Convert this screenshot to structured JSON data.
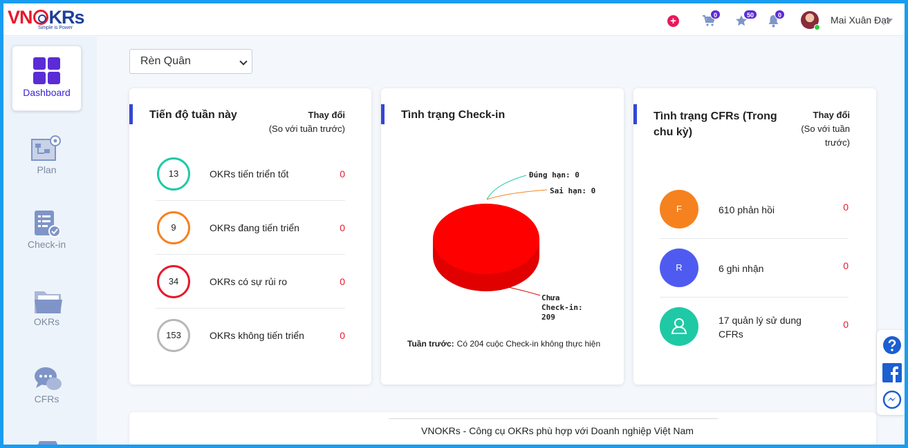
{
  "app": {
    "logo_brand": "VNOKRs",
    "logo_tagline": "Simple is Power"
  },
  "header": {
    "cart_count": "0",
    "star_count": "50",
    "bell_count": "0",
    "user_name": "Mai Xuân Đạt"
  },
  "sidebar": {
    "items": [
      {
        "label": "Dashboard",
        "icon": "dashboard-icon",
        "active": true
      },
      {
        "label": "Plan",
        "icon": "plan-icon",
        "active": false
      },
      {
        "label": "Check-in",
        "icon": "checkin-icon",
        "active": false
      },
      {
        "label": "OKRs",
        "icon": "okrs-folder-icon",
        "active": false
      },
      {
        "label": "CFRs",
        "icon": "cfrs-chat-icon",
        "active": false
      }
    ]
  },
  "filter": {
    "selected": "Rèn Quân"
  },
  "progress_card": {
    "title": "Tiến độ tuần này",
    "change_title": "Thay đổi",
    "change_sub": "(So với tuần trước)",
    "rows": [
      {
        "count": "13",
        "label": "OKRs tiến triển tốt",
        "change": "0",
        "color": "#1fc9a6"
      },
      {
        "count": "9",
        "label": "OKRs đang tiến triển",
        "change": "0",
        "color": "#f5821f"
      },
      {
        "count": "34",
        "label": "OKRs có sự rủi ro",
        "change": "0",
        "color": "#e8192c"
      },
      {
        "count": "153",
        "label": "OKRs không tiến triển",
        "change": "0",
        "color": "#b8b8b8"
      }
    ]
  },
  "checkin_card": {
    "title": "Tình trạng Check-in",
    "last_week_label": "Tuần trước:",
    "last_week_text": "Có 204 cuộc Check-in không thực hiện"
  },
  "chart_data": {
    "type": "pie",
    "title": "",
    "slices": [
      {
        "label": "Đúng hạn: 0",
        "name": "Đúng hạn",
        "value": 0,
        "color": "#1fc9a6"
      },
      {
        "label": "Sai hạn: 0",
        "name": "Sai hạn",
        "value": 0,
        "color": "#f5821f"
      },
      {
        "label_line1": "Chưa",
        "label_line2": "Check-in:",
        "label_line3": "209",
        "name": "Chưa Check-in",
        "value": 209,
        "color": "#ff0000"
      }
    ]
  },
  "cfr_card": {
    "title_line1": "Tình trạng CFRs (Trong",
    "title_line2": "chu kỳ)",
    "change_title": "Thay đổi",
    "change_sub1": "(So với tuần",
    "change_sub2": "trước)",
    "rows": [
      {
        "badge": "F",
        "label": "610 phản hồi",
        "change": "0",
        "color": "#f5821f"
      },
      {
        "badge": "R",
        "label": "6 ghi nhận",
        "change": "0",
        "color": "#4f5bf0"
      },
      {
        "badge": "user-icon",
        "label_line1": "17 quản lý sử dung",
        "label_line2": "CFRs",
        "change": "0",
        "color": "#1fc9a6"
      }
    ]
  },
  "footer": {
    "text": "VNOKRs - Công cụ OKRs phù hợp với Doanh nghiệp Việt Nam"
  },
  "float_bar": {
    "icons": [
      "help-icon",
      "facebook-icon",
      "messenger-icon"
    ]
  }
}
